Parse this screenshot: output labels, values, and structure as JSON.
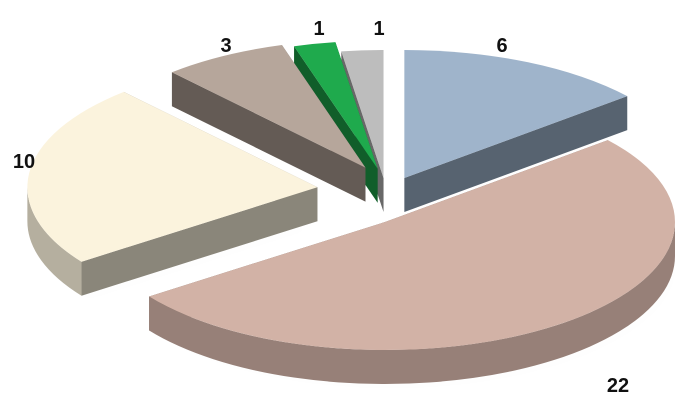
{
  "chart_data": {
    "type": "pie",
    "style": "3d-exploded",
    "title": "",
    "legend": "none",
    "slices": [
      {
        "value": 6,
        "label": "6",
        "color": "#9fb4cb"
      },
      {
        "value": 22,
        "label": "22",
        "color": "#d2b2a6"
      },
      {
        "value": 10,
        "label": "10",
        "color": "#fbf3dd"
      },
      {
        "value": 3,
        "label": "3",
        "color": "#b6a69b"
      },
      {
        "value": 1,
        "label": "1",
        "color": "#1faa4d"
      },
      {
        "value": 1,
        "label": "1",
        "color": "#bdbdbd"
      }
    ]
  }
}
